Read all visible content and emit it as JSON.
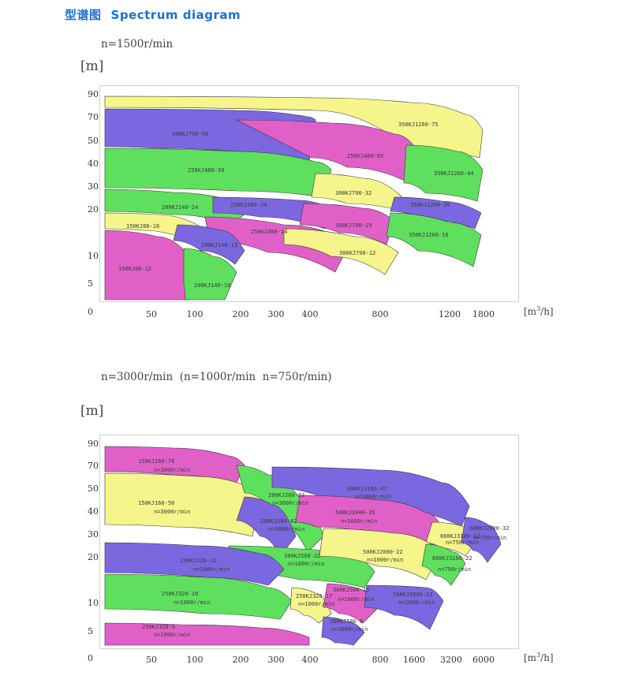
{
  "header": {
    "title_cn": "型谱图",
    "title_en": "Spectrum diagram"
  },
  "chart_data": [
    {
      "type": "area",
      "title": "",
      "speed_label": "n=1500r/min",
      "ylabel": "[m]",
      "xlabel": "[m³/h]",
      "y_ticks": [
        "90",
        "70",
        "50",
        "40",
        "30",
        "20",
        "10",
        "5",
        "0"
      ],
      "x_ticks": [
        "50",
        "100",
        "200",
        "300",
        "400",
        "800",
        "1200",
        "1800"
      ],
      "series": [
        {
          "name": "350KJ1260-75",
          "color": "#f5f58c"
        },
        {
          "name": "300KJ790-58",
          "color": "#7b68e0"
        },
        {
          "name": "250KJ480-65",
          "color": "#e060c8"
        },
        {
          "name": "350KJ1260-44",
          "color": "#5ee05e"
        },
        {
          "name": "250KJ480-39",
          "color": "#5ee05e"
        },
        {
          "name": "300KJ790-32",
          "color": "#f5f58c"
        },
        {
          "name": "350KJ1260-26",
          "color": "#7b68e0"
        },
        {
          "name": "200KJ140-24",
          "color": "#5ee05e"
        },
        {
          "name": "250KJ480-24",
          "color": "#7b68e0"
        },
        {
          "name": "300KJ790-19",
          "color": "#e060c8"
        },
        {
          "name": "350KJ1260-16",
          "color": "#5ee05e"
        },
        {
          "name": "150KJ80-18",
          "color": "#f5f58c"
        },
        {
          "name": "250KJ480-14",
          "color": "#e060c8"
        },
        {
          "name": "300KJ790-12",
          "color": "#f5f58c"
        },
        {
          "name": "200KJ140-15",
          "color": "#7b68e0"
        },
        {
          "name": "150KJ80-12",
          "color": "#e060c8"
        },
        {
          "name": "200KJ140-10",
          "color": "#5ee05e"
        }
      ]
    },
    {
      "type": "area",
      "title": "",
      "speed_label": "n=3000r/min  (n=1000r/min  n=750r/min)",
      "ylabel": "[m]",
      "xlabel": "[m³/h]",
      "y_ticks": [
        "90",
        "70",
        "50",
        "40",
        "30",
        "20",
        "10",
        "5",
        "0"
      ],
      "x_ticks": [
        "50",
        "100",
        "200",
        "300",
        "400",
        "800",
        "1600",
        "3200",
        "6000"
      ],
      "series": [
        {
          "name": "150KJ160-78",
          "speed": "n=3000r/min",
          "color": "#e060c8"
        },
        {
          "name": "150KJ160-50",
          "speed": "n=3000r/min",
          "color": "#f5f58c"
        },
        {
          "name": "200KJ280-63",
          "speed": "n=3000r/min",
          "color": "#5ee05e"
        },
        {
          "name": "200KJ280-42",
          "speed": "n=3000r/min",
          "color": "#7b68e0"
        },
        {
          "name": "600KJ3180-47",
          "speed": "n=1000r/min",
          "color": "#7b68e0"
        },
        {
          "name": "500KJ2000-35",
          "speed": "n=1000r/min",
          "color": "#e060c8"
        },
        {
          "name": "600KJ3180-32",
          "speed": "n=750r/min",
          "color": "#f5f58c"
        },
        {
          "name": "600KJ2900-32",
          "speed": "n=750r/min",
          "color": "#7b68e0"
        },
        {
          "name": "300KJ500-22",
          "speed": "n=1000r/min",
          "color": "#5ee05e"
        },
        {
          "name": "500KJ2000-22",
          "speed": "n=1000r/min",
          "color": "#f5f58c"
        },
        {
          "name": "600KJ3180-22",
          "speed": "n=750r/min",
          "color": "#5ee05e"
        },
        {
          "name": "250KJ320-22",
          "speed": "n=1000r/min",
          "color": "#7b68e0"
        },
        {
          "name": "250KJ320-10",
          "speed": "n=1000r/min",
          "color": "#5ee05e"
        },
        {
          "name": "250KJ320-17",
          "speed": "n=1000r/min",
          "color": "#f5f58c"
        },
        {
          "name": "300KJ500-15",
          "speed": "n=1000r/min",
          "color": "#e060c8"
        },
        {
          "name": "500KJ2000-13",
          "speed": "n=1000r/min",
          "color": "#7b68e0"
        },
        {
          "name": "250KJ320-6",
          "speed": "n=1000r/min",
          "color": "#e060c8"
        },
        {
          "name": "300KJ500-8",
          "speed": "n=1000r/min",
          "color": "#7b68e0"
        }
      ]
    }
  ]
}
